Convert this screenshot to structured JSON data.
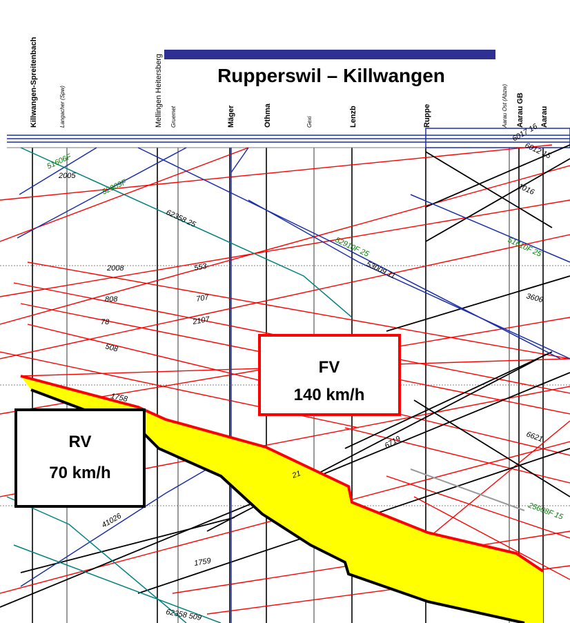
{
  "title": "Rupperswil – Killwangen",
  "stations": [
    {
      "name": "Killwangen-Spreitenbach",
      "style": "bold"
    },
    {
      "name": "Langacher (Spw)",
      "style": "small"
    },
    {
      "name": "Mellingen Heitersberg",
      "style": "normal"
    },
    {
      "name": "Gruemet",
      "style": "small"
    },
    {
      "name": "Mäger",
      "style": "bold"
    },
    {
      "name": "Othma",
      "style": "bold"
    },
    {
      "name": "Gexi",
      "style": "small"
    },
    {
      "name": "Lenzb",
      "style": "bold"
    },
    {
      "name": "Ruppe",
      "style": "bold"
    },
    {
      "name": "Aarau Ost (Abzw)",
      "style": "small"
    },
    {
      "name": "Aarau GB",
      "style": "bold"
    },
    {
      "name": "Aarau",
      "style": "bold"
    }
  ],
  "boxes": {
    "fv": {
      "line1": "FV",
      "line2": "140 km/h"
    },
    "rv": {
      "line1": "RV",
      "line2": "70 km/h"
    }
  },
  "train_labels": [
    "51606F",
    "2005",
    "52909F",
    "62358 25",
    "52910F 25",
    "53009 11",
    "51610F 25",
    "2008",
    "553",
    "808",
    "707",
    "78",
    "2107",
    "508",
    "1758",
    "3606",
    "1016",
    "6017 16",
    "6012 15",
    "6719",
    "6621",
    "21",
    "25608F 15",
    "41026",
    "1759",
    "62358 509"
  ]
}
